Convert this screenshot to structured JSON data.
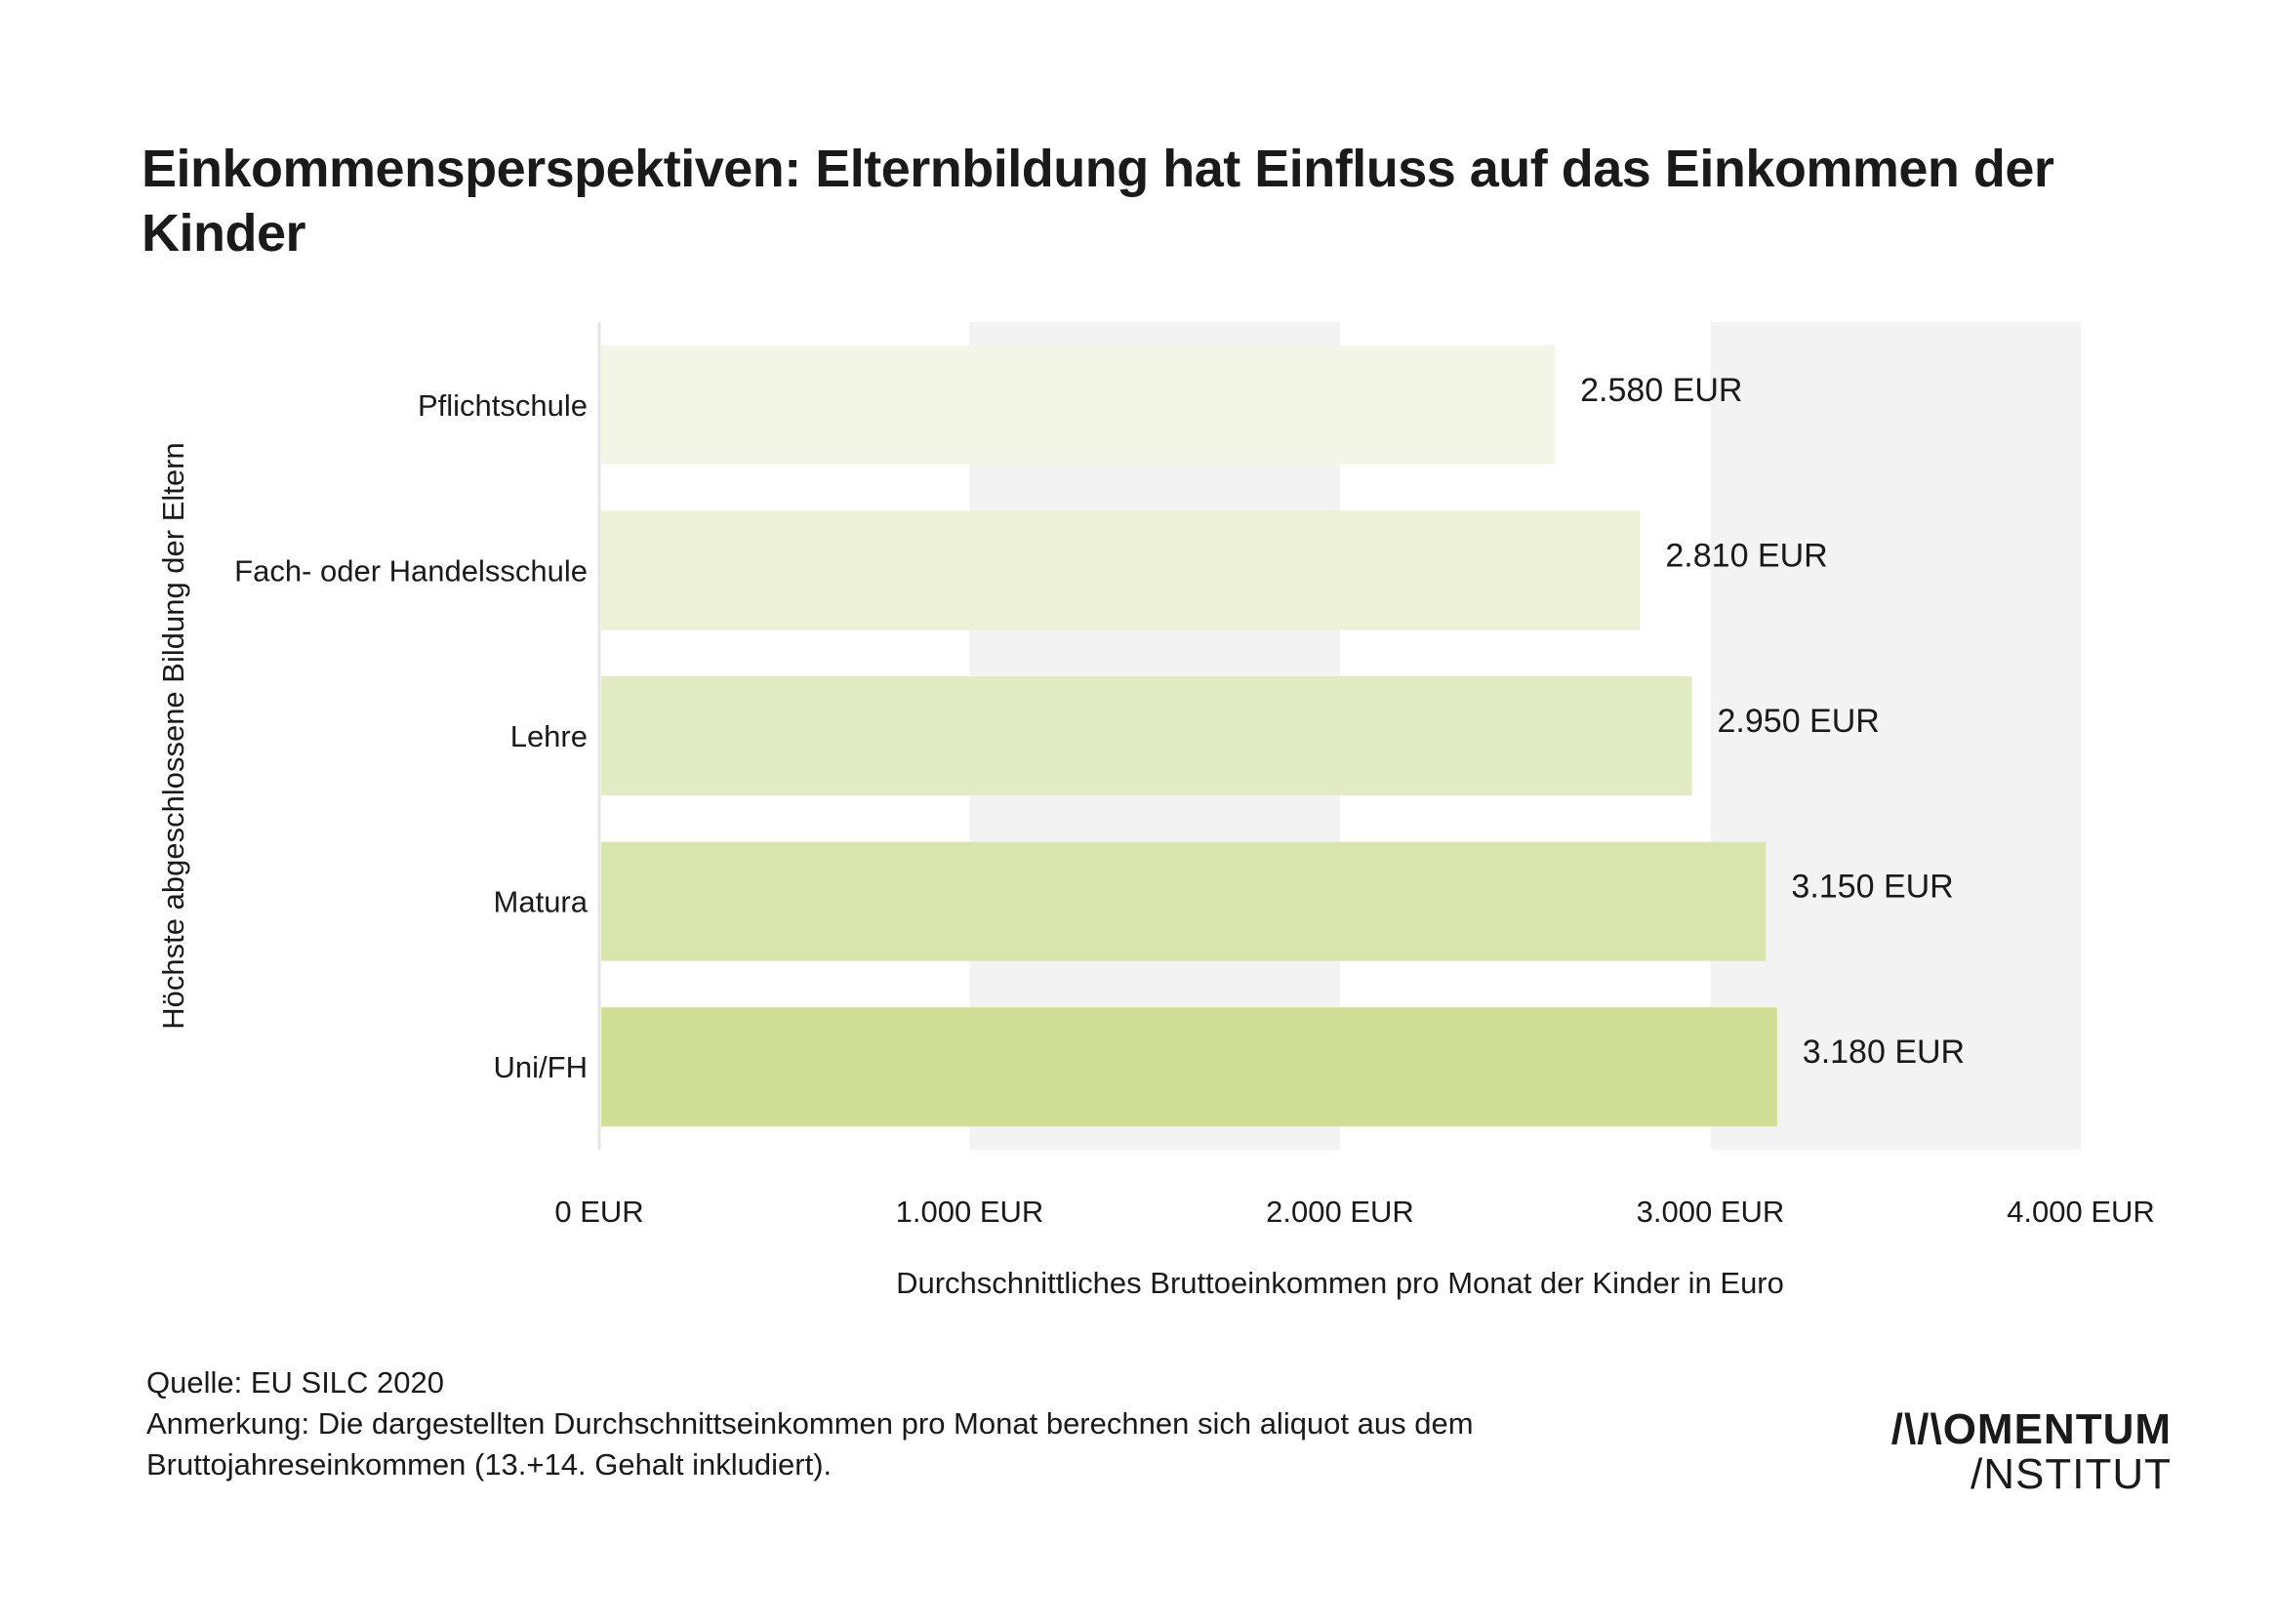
{
  "chart_data": {
    "type": "bar",
    "orientation": "horizontal",
    "title": "Einkommensperspektiven: Elternbildung hat Einfluss auf das Einkommen der Kinder",
    "xlabel": "Durchschnittliches Bruttoeinkommen pro Monat der Kinder in Euro",
    "ylabel": "Höchste abgeschlossene Bildung der Eltern",
    "categories": [
      "Pflichtschule",
      "Fach- oder Handelsschule",
      "Lehre",
      "Matura",
      "Uni/FH"
    ],
    "values": [
      2580,
      2810,
      2950,
      3150,
      3180
    ],
    "value_labels": [
      "2.580 EUR",
      "2.810 EUR",
      "2.950 EUR",
      "3.150 EUR",
      "3.180 EUR"
    ],
    "xlim": [
      0,
      4000
    ],
    "x_ticks": [
      0,
      1000,
      2000,
      3000,
      4000
    ],
    "x_tick_labels": [
      "0 EUR",
      "1.000 EUR",
      "2.000 EUR",
      "3.000 EUR",
      "4.000 EUR"
    ],
    "bar_colors": [
      "#f3f6e6",
      "#ecf1d8",
      "#e2ebc4",
      "#d8e5ac",
      "#cfde94"
    ],
    "band_color": "#f3f3f3",
    "grid": false,
    "legend": "none"
  },
  "footnote": {
    "source": "Quelle: EU SILC 2020",
    "note_line1": "Anmerkung: Die dargestellten Durchschnittseinkommen pro Monat berechnen sich aliquot aus dem",
    "note_line2": "Bruttojahreseinkommen (13.+14. Gehalt inkludiert)."
  },
  "logo": {
    "line1": "/\\/\\OMENTUM",
    "line2": "/NSTITUT"
  }
}
